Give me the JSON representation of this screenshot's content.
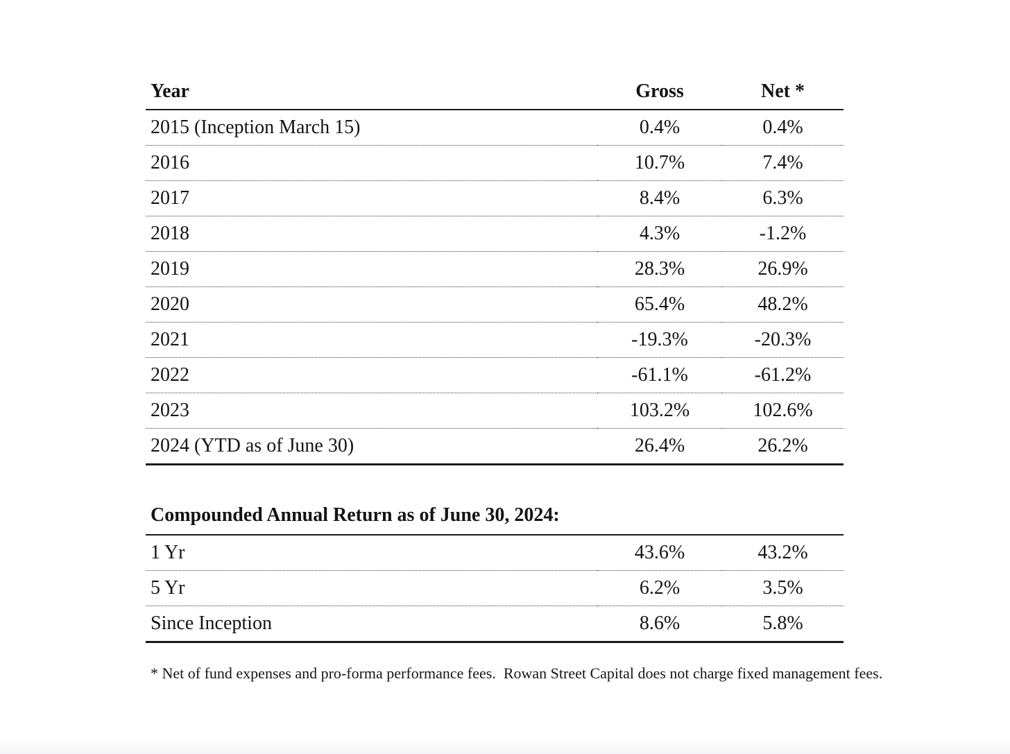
{
  "annual_table": {
    "columns": {
      "year": "Year",
      "gross": "Gross",
      "net": "Net *"
    },
    "rows": [
      {
        "year": "2015 (Inception March 15)",
        "gross": "0.4%",
        "net": "0.4%"
      },
      {
        "year": "2016",
        "gross": "10.7%",
        "net": "7.4%"
      },
      {
        "year": "2017",
        "gross": "8.4%",
        "net": "6.3%"
      },
      {
        "year": "2018",
        "gross": "4.3%",
        "net": "-1.2%"
      },
      {
        "year": "2019",
        "gross": "28.3%",
        "net": "26.9%"
      },
      {
        "year": "2020",
        "gross": "65.4%",
        "net": "48.2%"
      },
      {
        "year": "2021",
        "gross": "-19.3%",
        "net": "-20.3%"
      },
      {
        "year": "2022",
        "gross": "-61.1%",
        "net": "-61.2%"
      },
      {
        "year": "2023",
        "gross": "103.2%",
        "net": "102.6%"
      },
      {
        "year": "2024 (YTD as of June 30)",
        "gross": "26.4%",
        "net": "26.2%"
      }
    ]
  },
  "car_table": {
    "title": "Compounded Annual Return as of June 30, 2024:",
    "rows": [
      {
        "period": "1 Yr",
        "gross": "43.6%",
        "net": "43.2%"
      },
      {
        "period": "5 Yr",
        "gross": "6.2%",
        "net": "3.5%"
      },
      {
        "period": "Since Inception",
        "gross": "8.6%",
        "net": "5.8%"
      }
    ]
  },
  "footnote": "* Net of fund expenses and pro-forma performance fees.  Rowan Street Capital does not charge fixed management fees.",
  "colors": {
    "text": "#141414",
    "solid_rule": "#1a1a1a",
    "dotted_rule": "#3c3c3c",
    "background": "#ffffff"
  }
}
